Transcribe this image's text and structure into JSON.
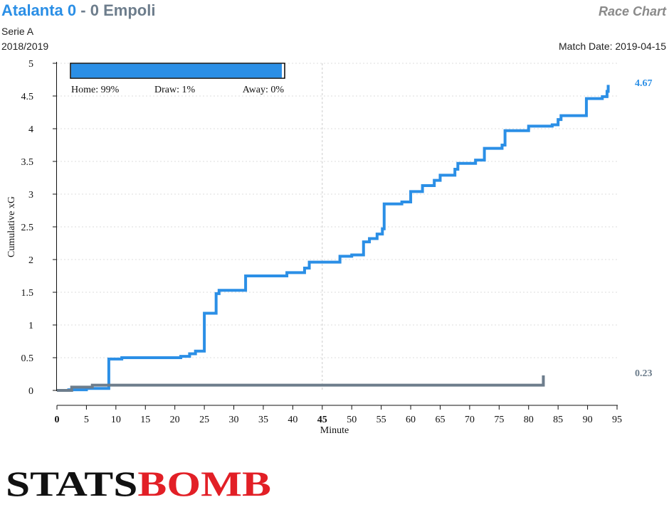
{
  "header": {
    "home_team": "Atalanta",
    "home_score": "0",
    "separator": "-",
    "away_score": "0",
    "away_team": "Empoli",
    "chart_kind": "Race Chart",
    "competition": "Serie A",
    "season": "2018/2019",
    "match_date": "Match Date: 2019-04-15"
  },
  "brand": {
    "logo_text": "STATSBOMB"
  },
  "colors": {
    "home": "#2b8fe6",
    "away": "#6d7d8c",
    "brand_red": "#e21f26"
  },
  "probability": {
    "home_label": "Home: 99%",
    "draw_label": "Draw: 1%",
    "away_label": "Away: 0%",
    "home": 0.99,
    "draw": 0.01,
    "away": 0.0
  },
  "chart_data": {
    "type": "line",
    "xlabel": "Minute",
    "ylabel": "Cumulative xG",
    "xlim": [
      0,
      95
    ],
    "ylim": [
      0,
      5
    ],
    "xticks": [
      0,
      5,
      10,
      15,
      20,
      25,
      30,
      35,
      40,
      45,
      50,
      55,
      60,
      65,
      70,
      75,
      80,
      85,
      90,
      95
    ],
    "yticks": [
      0,
      0.5,
      1,
      1.5,
      2,
      2.5,
      3,
      3.5,
      4,
      4.5,
      5
    ],
    "ytick_labels": [
      "0",
      "0.5",
      "1",
      "1.5",
      "2",
      "2.5",
      "3",
      "3.5",
      "4",
      "4.5",
      "5"
    ],
    "emphasized_ticks": [
      0,
      45
    ],
    "halftime_line": 45,
    "grid": true,
    "series": [
      {
        "team": "home",
        "final_label": "4.67",
        "step_points": [
          [
            0,
            0
          ],
          [
            2,
            0.01
          ],
          [
            5,
            0.03
          ],
          [
            8.8,
            0.48
          ],
          [
            11,
            0.5
          ],
          [
            21,
            0.52
          ],
          [
            22.5,
            0.56
          ],
          [
            23.5,
            0.6
          ],
          [
            25,
            1.18
          ],
          [
            27,
            1.48
          ],
          [
            27.5,
            1.53
          ],
          [
            32,
            1.75
          ],
          [
            39,
            1.8
          ],
          [
            42,
            1.87
          ],
          [
            42.8,
            1.96
          ],
          [
            48,
            2.05
          ],
          [
            50,
            2.07
          ],
          [
            52,
            2.27
          ],
          [
            53,
            2.32
          ],
          [
            54.3,
            2.39
          ],
          [
            55.2,
            2.47
          ],
          [
            55.5,
            2.85
          ],
          [
            58.5,
            2.88
          ],
          [
            60,
            3.04
          ],
          [
            62,
            3.13
          ],
          [
            64,
            3.21
          ],
          [
            65,
            3.29
          ],
          [
            67.5,
            3.38
          ],
          [
            68,
            3.47
          ],
          [
            71,
            3.52
          ],
          [
            72.5,
            3.7
          ],
          [
            75.5,
            3.75
          ],
          [
            76,
            3.97
          ],
          [
            80,
            4.04
          ],
          [
            84,
            4.06
          ],
          [
            85,
            4.14
          ],
          [
            85.5,
            4.2
          ],
          [
            89.8,
            4.46
          ],
          [
            92.5,
            4.49
          ],
          [
            93.3,
            4.57
          ],
          [
            93.5,
            4.67
          ]
        ]
      },
      {
        "team": "away",
        "final_label": "0.23",
        "step_points": [
          [
            0,
            0
          ],
          [
            2.5,
            0.05
          ],
          [
            6,
            0.08
          ],
          [
            82.5,
            0.23
          ]
        ]
      }
    ]
  }
}
